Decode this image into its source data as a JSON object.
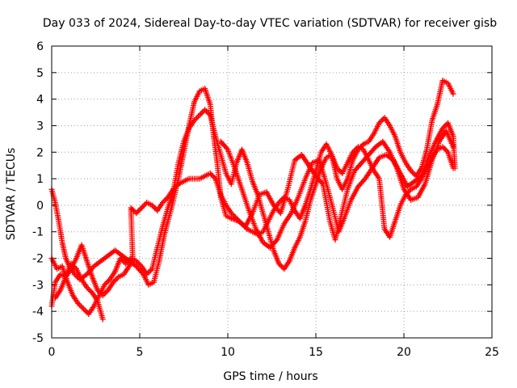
{
  "chart_data": {
    "type": "scatter",
    "title": "Day 033 of 2024, Sidereal Day-to-day VTEC variation (SDTVAR) for receiver gisb",
    "xlabel": "GPS time / hours",
    "ylabel": "SDTVAR / TECUs",
    "xlim": [
      0,
      25
    ],
    "ylim": [
      -5,
      6
    ],
    "x_ticks": [
      0,
      5,
      10,
      15,
      20,
      25
    ],
    "y_ticks": [
      -5,
      -4,
      -3,
      -2,
      -1,
      0,
      1,
      2,
      3,
      4,
      5,
      6
    ],
    "grid": true,
    "marker": "+",
    "series_color": "#ff0000",
    "series": [
      {
        "name": "track-1",
        "points": [
          [
            0.0,
            0.6
          ],
          [
            0.2,
            0.1
          ],
          [
            0.4,
            -0.6
          ],
          [
            0.6,
            -1.4
          ],
          [
            0.8,
            -2.0
          ],
          [
            1.0,
            -2.3
          ],
          [
            1.3,
            -2.6
          ],
          [
            1.6,
            -2.8
          ],
          [
            2.0,
            -2.6
          ],
          [
            2.4,
            -2.3
          ],
          [
            2.8,
            -2.1
          ],
          [
            3.2,
            -1.9
          ],
          [
            3.6,
            -1.7
          ],
          [
            4.0,
            -1.9
          ],
          [
            4.4,
            -2.1
          ],
          [
            4.8,
            -2.3
          ],
          [
            5.2,
            -2.6
          ],
          [
            5.5,
            -3.0
          ],
          [
            5.8,
            -2.9
          ],
          [
            6.1,
            -2.1
          ],
          [
            6.4,
            -1.1
          ],
          [
            6.8,
            -0.1
          ],
          [
            7.2,
            1.0
          ],
          [
            7.5,
            2.0
          ],
          [
            7.8,
            3.0
          ],
          [
            8.1,
            3.9
          ],
          [
            8.4,
            4.3
          ],
          [
            8.7,
            4.4
          ],
          [
            9.0,
            3.8
          ],
          [
            9.2,
            2.6
          ],
          [
            9.4,
            1.6
          ],
          [
            9.6,
            0.3
          ],
          [
            9.9,
            -0.4
          ],
          [
            10.2,
            -0.5
          ],
          [
            10.6,
            -0.6
          ],
          [
            11.0,
            -0.8
          ],
          [
            11.4,
            -0.3
          ],
          [
            11.8,
            0.4
          ],
          [
            12.2,
            0.5
          ],
          [
            12.6,
            0.0
          ],
          [
            13.0,
            -0.3
          ],
          [
            13.4,
            0.6
          ],
          [
            13.8,
            1.7
          ],
          [
            14.2,
            1.9
          ],
          [
            14.6,
            1.5
          ],
          [
            15.0,
            1.1
          ],
          [
            15.4,
            0.8
          ],
          [
            15.8,
            -0.6
          ],
          [
            16.1,
            -1.3
          ],
          [
            16.4,
            -0.5
          ],
          [
            16.8,
            0.6
          ],
          [
            17.2,
            1.3
          ],
          [
            17.6,
            1.6
          ],
          [
            18.0,
            1.9
          ],
          [
            18.4,
            2.2
          ],
          [
            18.8,
            2.4
          ],
          [
            19.2,
            2.0
          ],
          [
            19.6,
            1.4
          ],
          [
            20.0,
            0.6
          ],
          [
            20.4,
            0.2
          ],
          [
            20.8,
            0.3
          ],
          [
            21.2,
            0.8
          ],
          [
            21.6,
            1.7
          ],
          [
            22.0,
            2.4
          ],
          [
            22.4,
            2.8
          ],
          [
            22.8,
            2.2
          ]
        ]
      },
      {
        "name": "track-2",
        "points": [
          [
            0.0,
            -2.0
          ],
          [
            0.3,
            -2.4
          ],
          [
            0.6,
            -2.3
          ],
          [
            0.9,
            -2.9
          ],
          [
            1.2,
            -3.4
          ],
          [
            1.5,
            -3.7
          ],
          [
            1.8,
            -3.9
          ],
          [
            2.1,
            -4.1
          ],
          [
            2.4,
            -3.8
          ],
          [
            2.7,
            -3.4
          ],
          [
            3.0,
            -3.0
          ],
          [
            3.3,
            -2.8
          ],
          [
            3.6,
            -2.5
          ],
          [
            3.9,
            -2.0
          ],
          [
            4.2,
            -2.2
          ],
          [
            4.5,
            -2.0
          ],
          [
            4.8,
            -2.1
          ],
          [
            5.1,
            -2.3
          ],
          [
            5.4,
            -2.6
          ],
          [
            5.7,
            -2.4
          ],
          [
            6.0,
            -1.6
          ],
          [
            6.3,
            -0.8
          ],
          [
            6.6,
            -0.1
          ],
          [
            6.9,
            0.5
          ],
          [
            7.2,
            1.6
          ],
          [
            7.5,
            2.4
          ],
          [
            7.8,
            2.9
          ],
          [
            8.1,
            3.2
          ],
          [
            8.4,
            3.4
          ],
          [
            8.7,
            3.6
          ],
          [
            9.0,
            3.4
          ],
          [
            9.3,
            2.6
          ],
          [
            9.6,
            1.9
          ],
          [
            9.9,
            1.2
          ],
          [
            10.2,
            0.8
          ],
          [
            10.5,
            1.6
          ],
          [
            10.8,
            2.1
          ],
          [
            11.1,
            1.6
          ],
          [
            11.4,
            0.9
          ],
          [
            11.7,
            0.4
          ],
          [
            12.0,
            -0.3
          ],
          [
            12.3,
            -1.0
          ],
          [
            12.6,
            -1.7
          ],
          [
            12.9,
            -2.2
          ],
          [
            13.2,
            -2.4
          ],
          [
            13.5,
            -2.1
          ],
          [
            13.8,
            -1.6
          ],
          [
            14.1,
            -1.2
          ],
          [
            14.4,
            -0.6
          ],
          [
            14.7,
            0.2
          ],
          [
            15.0,
            0.8
          ],
          [
            15.3,
            1.4
          ],
          [
            15.6,
            1.8
          ],
          [
            15.9,
            1.9
          ],
          [
            16.2,
            1.0
          ],
          [
            16.5,
            0.6
          ],
          [
            16.8,
            1.0
          ],
          [
            17.1,
            1.7
          ],
          [
            17.4,
            2.1
          ],
          [
            17.7,
            2.3
          ],
          [
            18.0,
            2.4
          ],
          [
            18.3,
            2.7
          ],
          [
            18.6,
            3.1
          ],
          [
            18.9,
            3.3
          ],
          [
            19.2,
            3.0
          ],
          [
            19.5,
            2.6
          ],
          [
            19.8,
            2.0
          ],
          [
            20.1,
            1.6
          ],
          [
            20.4,
            1.3
          ],
          [
            20.7,
            1.1
          ],
          [
            21.0,
            1.4
          ],
          [
            21.3,
            2.1
          ],
          [
            21.6,
            3.2
          ],
          [
            21.9,
            3.8
          ],
          [
            22.2,
            4.7
          ],
          [
            22.5,
            4.6
          ],
          [
            22.8,
            4.2
          ]
        ]
      },
      {
        "name": "track-3",
        "points": [
          [
            0.0,
            -3.8
          ],
          [
            0.2,
            -2.9
          ],
          [
            0.5,
            -2.6
          ],
          [
            0.8,
            -2.7
          ],
          [
            1.1,
            -2.4
          ],
          [
            1.4,
            -2.0
          ],
          [
            1.7,
            -1.5
          ],
          [
            2.0,
            -2.1
          ],
          [
            2.3,
            -2.7
          ],
          [
            2.6,
            -3.2
          ],
          [
            2.9,
            -3.4
          ],
          [
            3.2,
            -3.2
          ],
          [
            3.5,
            -2.9
          ],
          [
            3.8,
            -2.7
          ],
          [
            4.1,
            -2.6
          ],
          [
            4.4,
            -2.3
          ],
          [
            4.6,
            -2.0
          ],
          [
            4.5,
            -0.1
          ],
          [
            4.8,
            -0.3
          ],
          [
            5.1,
            -0.1
          ],
          [
            5.4,
            0.1
          ],
          [
            5.7,
            0.0
          ],
          [
            6.0,
            -0.2
          ],
          [
            6.3,
            0.1
          ],
          [
            6.6,
            0.3
          ],
          [
            6.9,
            0.6
          ],
          [
            7.2,
            0.8
          ],
          [
            7.5,
            0.9
          ],
          [
            7.8,
            1.0
          ],
          [
            8.1,
            1.0
          ],
          [
            8.4,
            1.0
          ],
          [
            8.7,
            1.1
          ],
          [
            9.0,
            1.2
          ],
          [
            9.3,
            1.0
          ],
          [
            9.6,
            0.4
          ],
          [
            9.9,
            0.0
          ],
          [
            10.2,
            -0.3
          ],
          [
            10.5,
            -0.5
          ],
          [
            10.8,
            -0.7
          ],
          [
            11.1,
            -0.9
          ],
          [
            11.4,
            -1.0
          ],
          [
            11.7,
            -1.1
          ],
          [
            12.0,
            -1.0
          ],
          [
            12.3,
            -0.6
          ],
          [
            12.6,
            -0.2
          ],
          [
            12.9,
            0.1
          ],
          [
            13.2,
            0.3
          ],
          [
            13.5,
            0.2
          ],
          [
            13.8,
            -0.2
          ],
          [
            14.1,
            -0.5
          ],
          [
            14.4,
            0.0
          ],
          [
            14.7,
            0.6
          ],
          [
            15.0,
            1.3
          ],
          [
            15.3,
            2.0
          ],
          [
            15.6,
            2.3
          ],
          [
            15.9,
            1.9
          ],
          [
            16.2,
            1.4
          ],
          [
            16.5,
            1.2
          ],
          [
            16.8,
            1.6
          ],
          [
            17.1,
            2.0
          ],
          [
            17.4,
            2.2
          ],
          [
            17.7,
            2.1
          ],
          [
            18.0,
            1.7
          ],
          [
            18.3,
            1.3
          ],
          [
            18.6,
            1.0
          ],
          [
            18.9,
            -0.9
          ],
          [
            19.2,
            -1.2
          ],
          [
            19.5,
            -0.6
          ],
          [
            19.8,
            0.0
          ],
          [
            20.1,
            0.4
          ],
          [
            20.4,
            0.6
          ],
          [
            20.7,
            0.7
          ],
          [
            21.0,
            1.0
          ],
          [
            21.3,
            1.4
          ],
          [
            21.6,
            1.8
          ],
          [
            21.9,
            2.1
          ],
          [
            22.2,
            2.2
          ],
          [
            22.5,
            2.0
          ],
          [
            22.8,
            1.4
          ]
        ]
      },
      {
        "name": "track-4",
        "points": [
          [
            0.2,
            -3.5
          ],
          [
            0.5,
            -3.2
          ],
          [
            0.8,
            -2.7
          ],
          [
            1.1,
            -2.2
          ],
          [
            1.4,
            -2.4
          ],
          [
            1.7,
            -2.8
          ],
          [
            2.0,
            -3.1
          ],
          [
            2.3,
            -3.3
          ],
          [
            2.6,
            -3.6
          ],
          [
            2.9,
            -4.3
          ],
          [
            9.6,
            2.4
          ],
          [
            10.0,
            2.1
          ],
          [
            10.4,
            1.4
          ],
          [
            10.8,
            0.6
          ],
          [
            11.2,
            -0.2
          ],
          [
            11.6,
            -0.9
          ],
          [
            12.0,
            -1.4
          ],
          [
            12.4,
            -1.6
          ],
          [
            12.8,
            -1.3
          ],
          [
            13.2,
            -0.7
          ],
          [
            13.6,
            -0.3
          ],
          [
            14.0,
            0.3
          ],
          [
            14.4,
            1.0
          ],
          [
            14.8,
            1.6
          ],
          [
            15.2,
            1.7
          ],
          [
            15.6,
            0.8
          ],
          [
            16.0,
            -0.2
          ],
          [
            16.3,
            -1.0
          ],
          [
            16.6,
            -0.5
          ],
          [
            17.0,
            0.2
          ],
          [
            17.4,
            0.7
          ],
          [
            17.8,
            1.0
          ],
          [
            18.2,
            1.4
          ],
          [
            18.6,
            1.8
          ],
          [
            19.0,
            1.9
          ],
          [
            19.4,
            1.7
          ],
          [
            19.8,
            1.2
          ],
          [
            20.2,
            0.7
          ],
          [
            20.6,
            0.9
          ],
          [
            21.0,
            1.1
          ],
          [
            21.4,
            1.8
          ],
          [
            21.8,
            2.4
          ],
          [
            22.2,
            2.9
          ],
          [
            22.5,
            3.1
          ],
          [
            22.8,
            2.6
          ],
          [
            22.9,
            1.4
          ]
        ]
      }
    ]
  }
}
